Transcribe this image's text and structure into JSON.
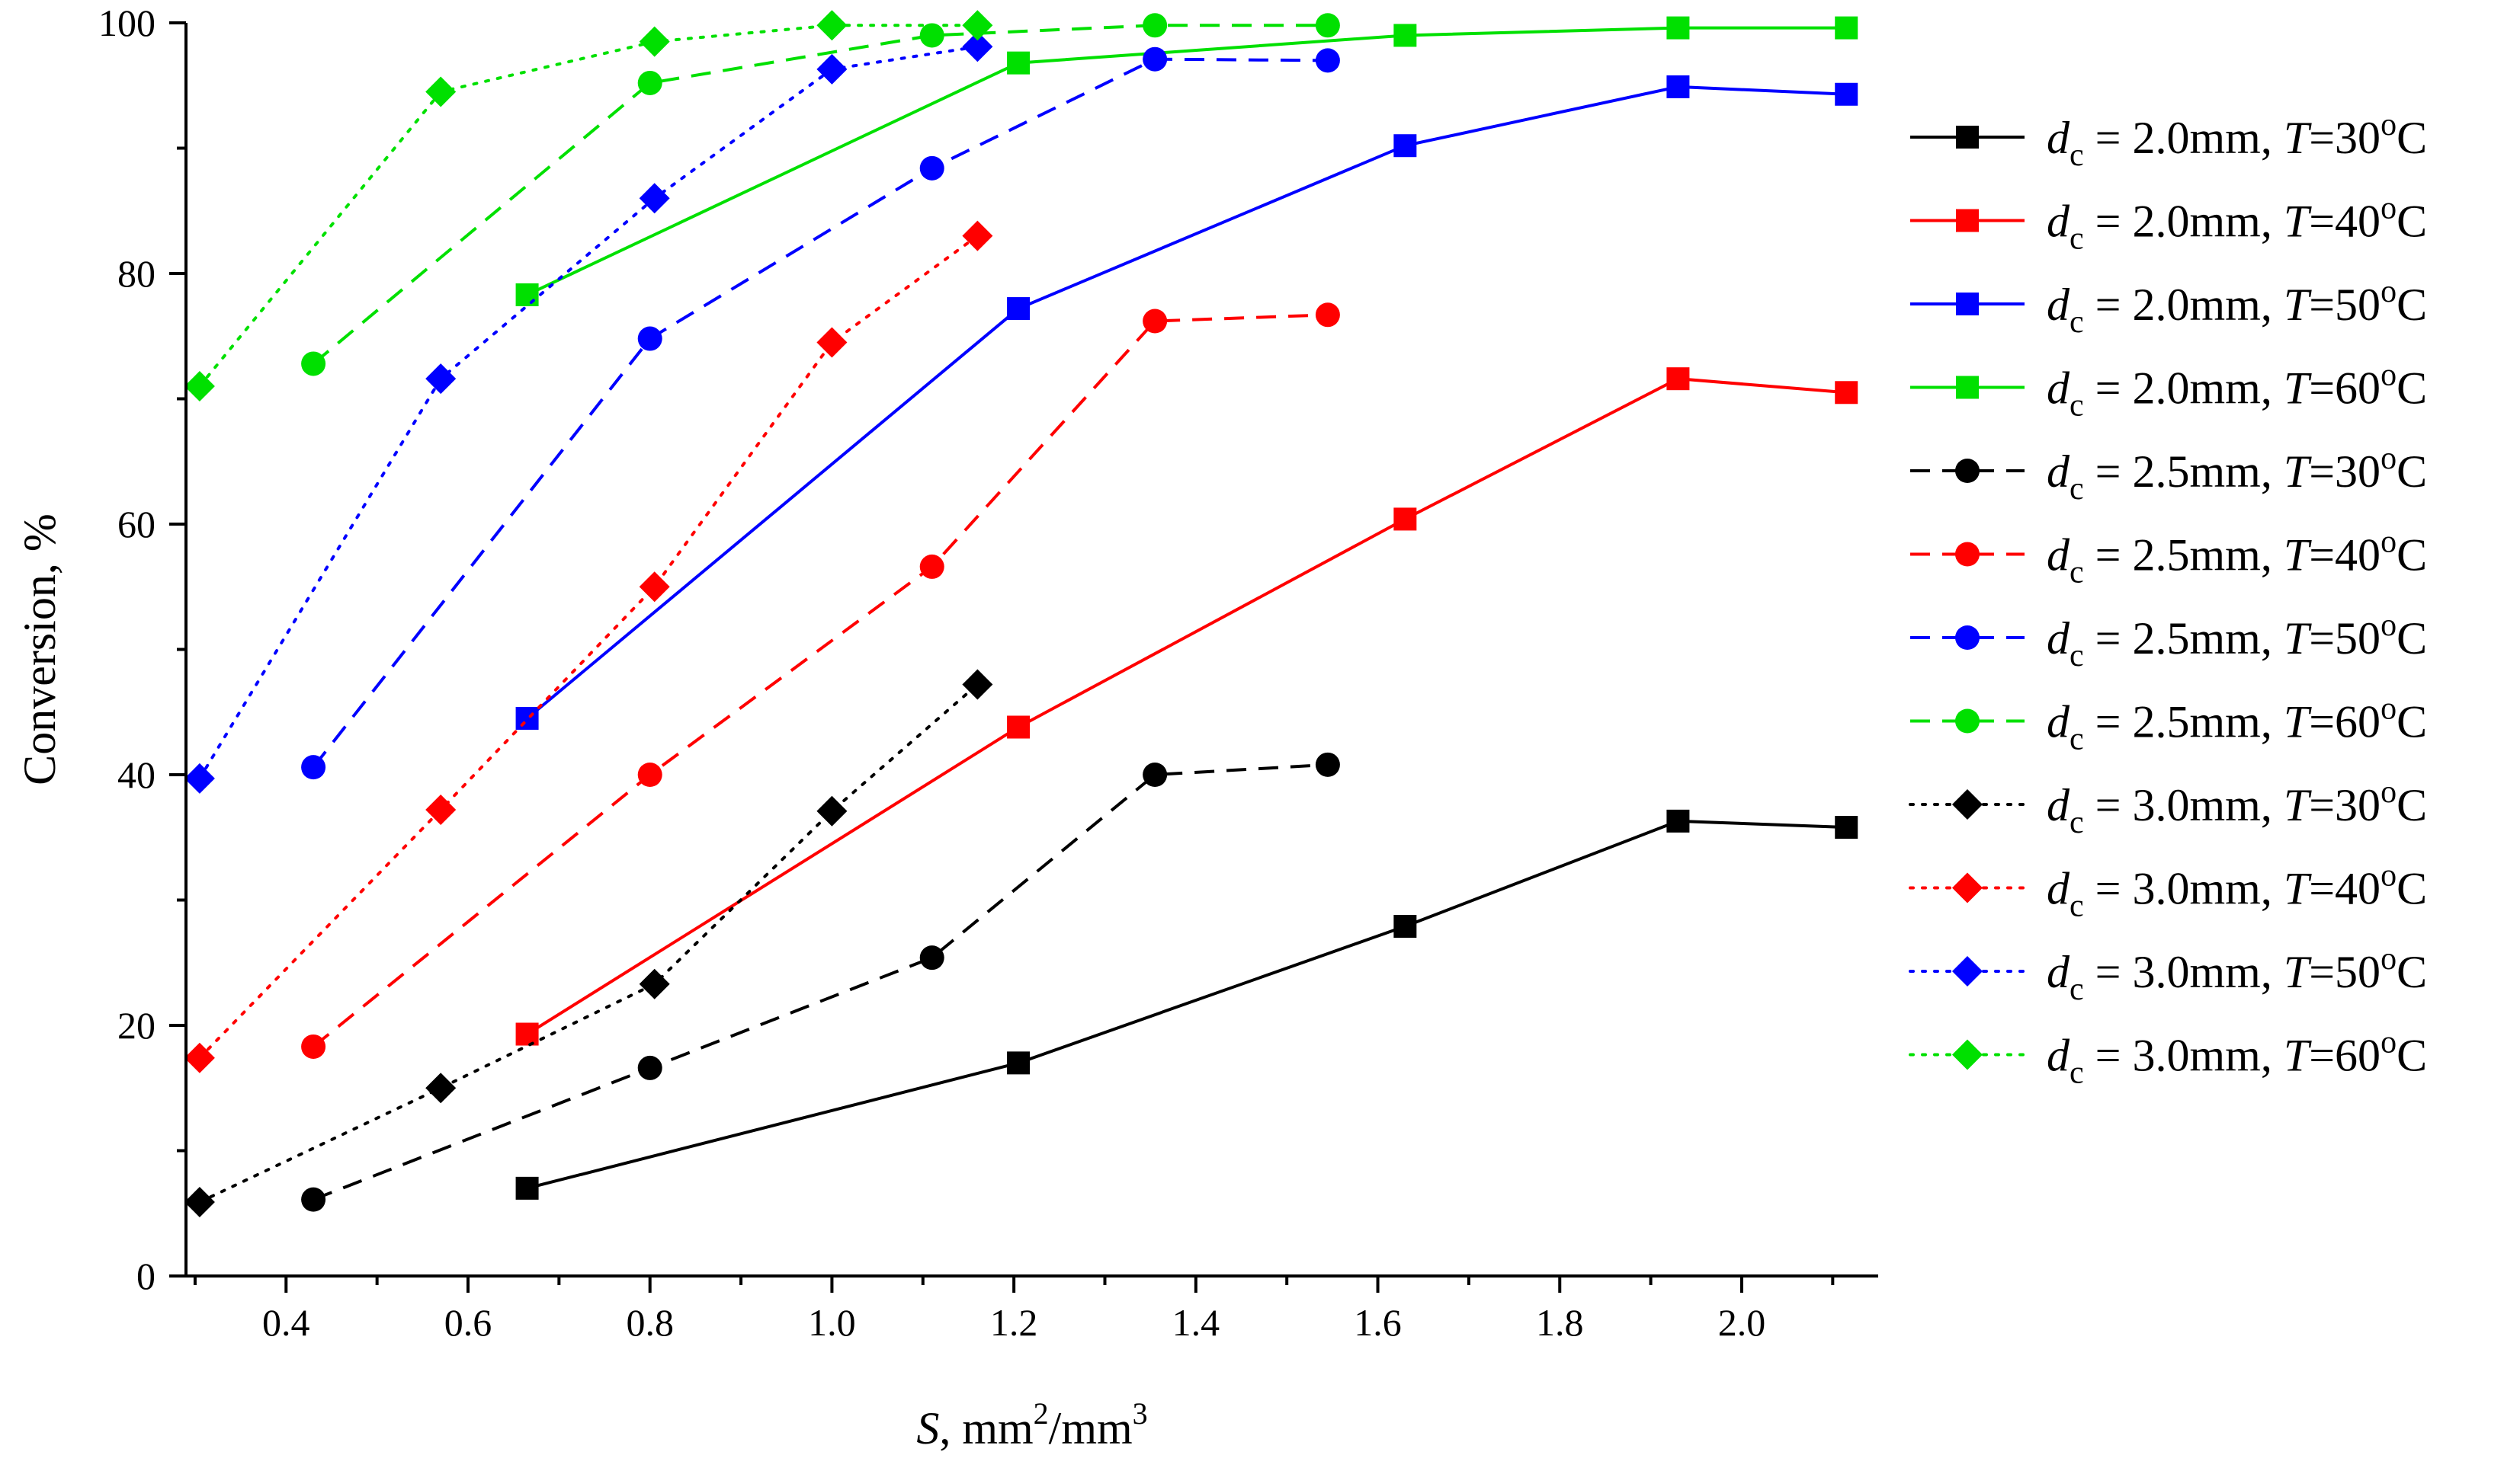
{
  "chart_data": {
    "type": "line",
    "title": "",
    "xlabel": {
      "italic": "S",
      "text": ", mm",
      "sup": "2",
      "text2": "/mm",
      "sup2": "3"
    },
    "ylabel": "Conversion, %",
    "xlim": [
      0.29,
      2.15
    ],
    "ylim": [
      0,
      100
    ],
    "xticks": [
      {
        "v": 0.4,
        "label": "0.4"
      },
      {
        "v": 0.6,
        "label": "0.6"
      },
      {
        "v": 0.8,
        "label": "0.8"
      },
      {
        "v": 1.0,
        "label": "1.0"
      },
      {
        "v": 1.2,
        "label": "1.2"
      },
      {
        "v": 1.4,
        "label": "1.4"
      },
      {
        "v": 1.6,
        "label": "1.6"
      },
      {
        "v": 1.8,
        "label": "1.8"
      },
      {
        "v": 2.0,
        "label": "2.0"
      }
    ],
    "xminor": [
      0.3,
      0.5,
      0.7,
      0.9,
      1.1,
      1.3,
      1.5,
      1.7,
      1.9,
      2.1
    ],
    "yticks": [
      {
        "v": 0,
        "label": "0"
      },
      {
        "v": 20,
        "label": "20"
      },
      {
        "v": 40,
        "label": "40"
      },
      {
        "v": 60,
        "label": "60"
      },
      {
        "v": 80,
        "label": "80"
      },
      {
        "v": 100,
        "label": "100"
      }
    ],
    "yminor": [
      10,
      30,
      50,
      70,
      90
    ],
    "legend_position": "right",
    "series": [
      {
        "name": "dc = 2.0mm, T=30oC",
        "legend": {
          "d": "d",
          "sub": "c",
          "mid": " = 2.0mm, ",
          "t": "T",
          "eq": "=30",
          "sup": "o",
          "unit": "C"
        },
        "color": "#000000",
        "dash": "solid",
        "marker": "square",
        "x": [
          0.665,
          1.205,
          1.63,
          1.93,
          2.115
        ],
        "y": [
          7.0,
          17.0,
          27.9,
          36.3,
          35.8
        ]
      },
      {
        "name": "dc = 2.0mm, T=40oC",
        "legend": {
          "d": "d",
          "sub": "c",
          "mid": " = 2.0mm, ",
          "t": "T",
          "eq": "=40",
          "sup": "o",
          "unit": "C"
        },
        "color": "#ff0000",
        "dash": "solid",
        "marker": "square",
        "x": [
          0.665,
          1.205,
          1.63,
          1.93,
          2.115
        ],
        "y": [
          19.3,
          43.8,
          60.4,
          71.6,
          70.5
        ]
      },
      {
        "name": "dc = 2.0mm, T=50oC",
        "legend": {
          "d": "d",
          "sub": "c",
          "mid": " = 2.0mm, ",
          "t": "T",
          "eq": "=50",
          "sup": "o",
          "unit": "C"
        },
        "color": "#0000ff",
        "dash": "solid",
        "marker": "square",
        "x": [
          0.665,
          1.205,
          1.63,
          1.93,
          2.115
        ],
        "y": [
          44.5,
          77.2,
          90.2,
          94.9,
          94.3
        ]
      },
      {
        "name": "dc = 2.0mm, T=60oC",
        "legend": {
          "d": "d",
          "sub": "c",
          "mid": " = 2.0mm, ",
          "t": "T",
          "eq": "=60",
          "sup": "o",
          "unit": "C"
        },
        "color": "#00e000",
        "dash": "solid",
        "marker": "square",
        "x": [
          0.665,
          1.205,
          1.63,
          1.93,
          2.115
        ],
        "y": [
          78.3,
          96.8,
          99.0,
          99.6,
          99.6
        ]
      },
      {
        "name": "dc = 2.5mm, T=30oC",
        "legend": {
          "d": "d",
          "sub": "c",
          "mid": " = 2.5mm, ",
          "t": "T",
          "eq": "=30",
          "sup": "o",
          "unit": "C"
        },
        "color": "#000000",
        "dash": "dashed",
        "marker": "circle",
        "x": [
          0.43,
          0.8,
          1.11,
          1.355,
          1.545
        ],
        "y": [
          6.1,
          16.6,
          25.4,
          40.0,
          40.8
        ]
      },
      {
        "name": "dc = 2.5mm, T=40oC",
        "legend": {
          "d": "d",
          "sub": "c",
          "mid": " = 2.5mm, ",
          "t": "T",
          "eq": "=40",
          "sup": "o",
          "unit": "C"
        },
        "color": "#ff0000",
        "dash": "dashed",
        "marker": "circle",
        "x": [
          0.43,
          0.8,
          1.11,
          1.355,
          1.545
        ],
        "y": [
          18.3,
          40.0,
          56.6,
          76.2,
          76.7
        ]
      },
      {
        "name": "dc = 2.5mm, T=50oC",
        "legend": {
          "d": "d",
          "sub": "c",
          "mid": " = 2.5mm, ",
          "t": "T",
          "eq": "=50",
          "sup": "o",
          "unit": "C"
        },
        "color": "#0000ff",
        "dash": "dashed",
        "marker": "circle",
        "x": [
          0.43,
          0.8,
          1.11,
          1.355,
          1.545
        ],
        "y": [
          40.6,
          74.8,
          88.4,
          97.1,
          97.0
        ]
      },
      {
        "name": "dc = 2.5mm, T=60oC",
        "legend": {
          "d": "d",
          "sub": "c",
          "mid": " = 2.5mm, ",
          "t": "T",
          "eq": "=60",
          "sup": "o",
          "unit": "C"
        },
        "color": "#00e000",
        "dash": "dashed",
        "marker": "circle",
        "x": [
          0.43,
          0.8,
          1.11,
          1.355,
          1.545
        ],
        "y": [
          72.8,
          95.2,
          99.0,
          99.8,
          99.8
        ]
      },
      {
        "name": "dc = 3.0mm, T=30oC",
        "legend": {
          "d": "d",
          "sub": "c",
          "mid": " = 3.0mm, ",
          "t": "T",
          "eq": "=30",
          "sup": "o",
          "unit": "C"
        },
        "color": "#000000",
        "dash": "dotted",
        "marker": "diamond",
        "x": [
          0.305,
          0.57,
          0.805,
          1.0,
          1.16
        ],
        "y": [
          5.9,
          15.0,
          23.3,
          37.1,
          47.2
        ]
      },
      {
        "name": "dc = 3.0mm, T=40oC",
        "legend": {
          "d": "d",
          "sub": "c",
          "mid": " = 3.0mm, ",
          "t": "T",
          "eq": "=40",
          "sup": "o",
          "unit": "C"
        },
        "color": "#ff0000",
        "dash": "dotted",
        "marker": "diamond",
        "x": [
          0.305,
          0.57,
          0.805,
          1.0,
          1.16
        ],
        "y": [
          17.4,
          37.2,
          55.0,
          74.5,
          83.0
        ]
      },
      {
        "name": "dc = 3.0mm, T=50oC",
        "legend": {
          "d": "d",
          "sub": "c",
          "mid": " = 3.0mm, ",
          "t": "T",
          "eq": "=50",
          "sup": "o",
          "unit": "C"
        },
        "color": "#0000ff",
        "dash": "dotted",
        "marker": "diamond",
        "x": [
          0.305,
          0.57,
          0.805,
          1.0,
          1.16
        ],
        "y": [
          39.7,
          71.6,
          86.0,
          96.3,
          98.1
        ]
      },
      {
        "name": "dc = 3.0mm, T=60oC",
        "legend": {
          "d": "d",
          "sub": "c",
          "mid": " = 3.0mm, ",
          "t": "T",
          "eq": "=60",
          "sup": "o",
          "unit": "C"
        },
        "color": "#00e000",
        "dash": "dotted",
        "marker": "diamond",
        "x": [
          0.305,
          0.57,
          0.805,
          1.0,
          1.16
        ],
        "y": [
          71.0,
          94.5,
          98.5,
          99.8,
          99.8
        ]
      }
    ]
  }
}
